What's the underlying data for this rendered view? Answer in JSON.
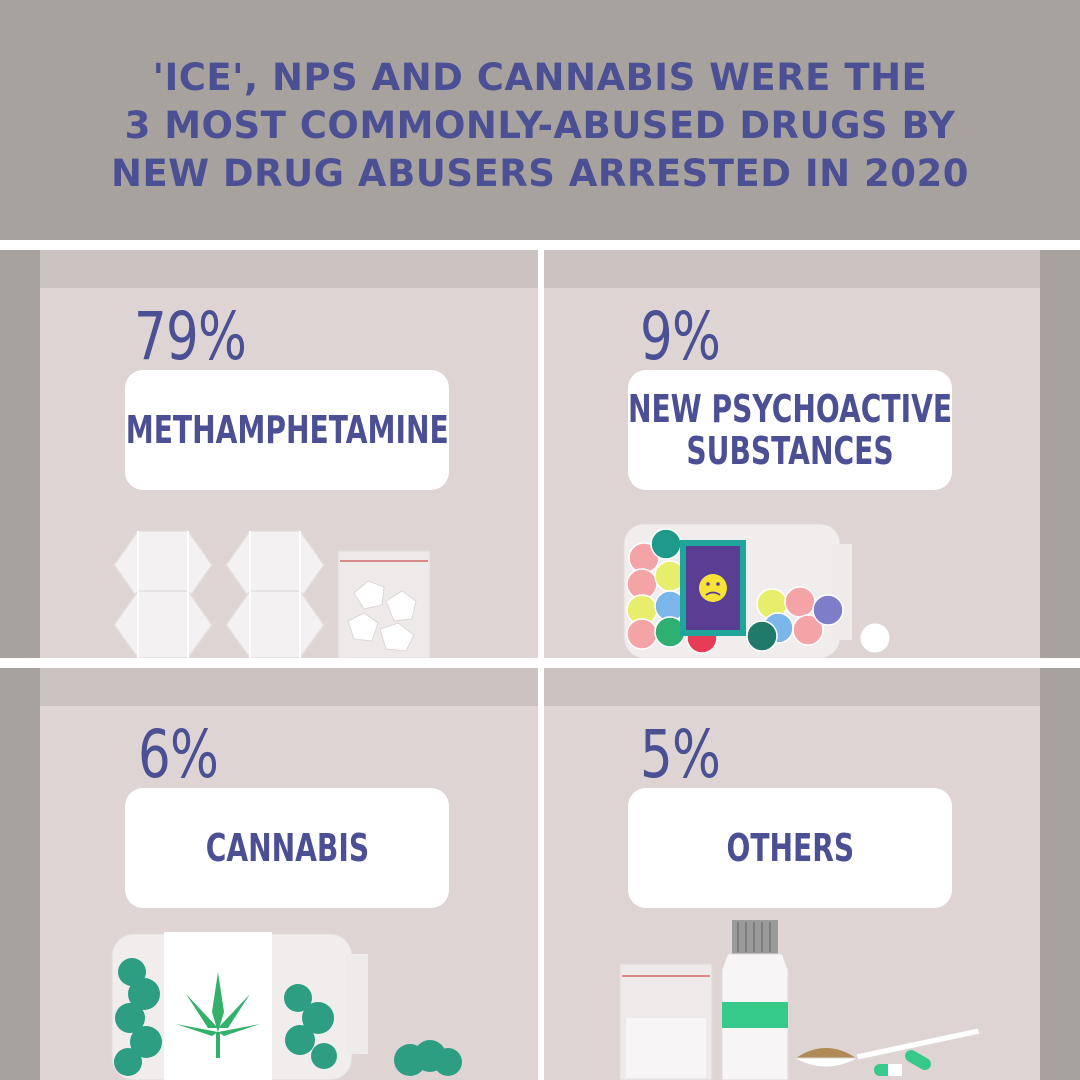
{
  "title": {
    "lines": [
      "'ICE', NPS AND CANNABIS WERE THE",
      "3 MOST COMMONLY-ABUSED DRUGS BY",
      "NEW DRUG ABUSERS ARRESTED IN 2020"
    ]
  },
  "panels": [
    {
      "percent": "79%",
      "label_lines": [
        "METHAMPHETAMINE"
      ]
    },
    {
      "percent": "9%",
      "label_lines": [
        "NEW PSYCHOACTIVE",
        "SUBSTANCES"
      ]
    },
    {
      "percent": "6%",
      "label_lines": [
        "CANNABIS"
      ]
    },
    {
      "percent": "5%",
      "label_lines": [
        "OTHERS"
      ]
    }
  ],
  "colors": {
    "header_bg": "#a8a29f",
    "text": "#4b4f93",
    "panel_bg": "#ddd4d3",
    "card_bg": "#ffffff",
    "divider": "#ffffff"
  },
  "icons": [
    "crystal-icon",
    "pill-bottle-icon",
    "cannabis-jar-icon",
    "medicine-bottle-icon"
  ]
}
